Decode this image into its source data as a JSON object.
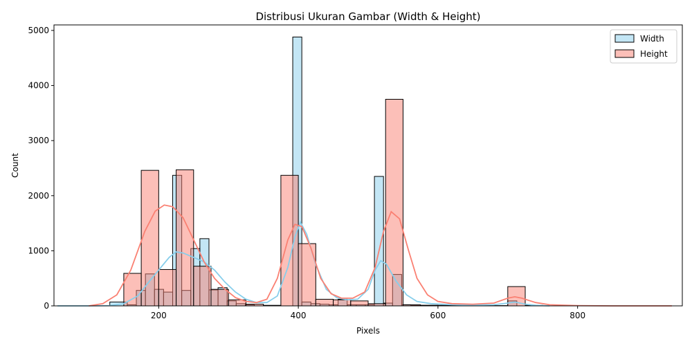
{
  "chart_data": {
    "type": "histogram",
    "title": "Distribusi Ukuran Gambar (Width & Height)",
    "xlabel": "Pixels",
    "ylabel": "Count",
    "xlim": [
      50,
      950
    ],
    "ylim": [
      0,
      5100
    ],
    "xticks": [
      200,
      400,
      600,
      800
    ],
    "yticks": [
      0,
      1000,
      2000,
      3000,
      4000,
      5000
    ],
    "legend_position": "top-right",
    "grid": false,
    "series": [
      {
        "name": "Width",
        "color": "#87ceeb",
        "kde_color": "#87ceeb",
        "bins": [
          {
            "x0": 130,
            "x1": 155,
            "count": 70
          },
          {
            "x0": 155,
            "x1": 168,
            "count": 20
          },
          {
            "x0": 168,
            "x1": 181,
            "count": 280
          },
          {
            "x0": 181,
            "x1": 194,
            "count": 580
          },
          {
            "x0": 194,
            "x1": 207,
            "count": 300
          },
          {
            "x0": 207,
            "x1": 220,
            "count": 250
          },
          {
            "x0": 220,
            "x1": 233,
            "count": 2370
          },
          {
            "x0": 233,
            "x1": 246,
            "count": 280
          },
          {
            "x0": 246,
            "x1": 259,
            "count": 1040
          },
          {
            "x0": 259,
            "x1": 272,
            "count": 1220
          },
          {
            "x0": 272,
            "x1": 285,
            "count": 290
          },
          {
            "x0": 285,
            "x1": 298,
            "count": 330
          },
          {
            "x0": 298,
            "x1": 311,
            "count": 90
          },
          {
            "x0": 311,
            "x1": 324,
            "count": 40
          },
          {
            "x0": 324,
            "x1": 337,
            "count": 20
          },
          {
            "x0": 392,
            "x1": 405,
            "count": 4880
          },
          {
            "x0": 405,
            "x1": 418,
            "count": 70
          },
          {
            "x0": 418,
            "x1": 431,
            "count": 40
          },
          {
            "x0": 431,
            "x1": 444,
            "count": 30
          },
          {
            "x0": 444,
            "x1": 457,
            "count": 20
          },
          {
            "x0": 457,
            "x1": 470,
            "count": 120
          },
          {
            "x0": 470,
            "x1": 483,
            "count": 20
          },
          {
            "x0": 483,
            "x1": 496,
            "count": 20
          },
          {
            "x0": 496,
            "x1": 509,
            "count": 20
          },
          {
            "x0": 509,
            "x1": 522,
            "count": 2350
          },
          {
            "x0": 522,
            "x1": 535,
            "count": 50
          },
          {
            "x0": 535,
            "x1": 548,
            "count": 570
          },
          {
            "x0": 548,
            "x1": 561,
            "count": 20
          },
          {
            "x0": 561,
            "x1": 600,
            "count": 10
          },
          {
            "x0": 700,
            "x1": 713,
            "count": 90
          }
        ],
        "kde": [
          [
            55,
            0
          ],
          [
            100,
            0
          ],
          [
            130,
            5
          ],
          [
            150,
            40
          ],
          [
            170,
            180
          ],
          [
            185,
            420
          ],
          [
            200,
            650
          ],
          [
            215,
            880
          ],
          [
            225,
            980
          ],
          [
            235,
            960
          ],
          [
            250,
            880
          ],
          [
            265,
            800
          ],
          [
            280,
            650
          ],
          [
            295,
            430
          ],
          [
            310,
            250
          ],
          [
            325,
            120
          ],
          [
            340,
            60
          ],
          [
            355,
            60
          ],
          [
            370,
            180
          ],
          [
            385,
            700
          ],
          [
            395,
            1250
          ],
          [
            403,
            1520
          ],
          [
            412,
            1300
          ],
          [
            425,
            750
          ],
          [
            440,
            300
          ],
          [
            455,
            150
          ],
          [
            470,
            110
          ],
          [
            485,
            120
          ],
          [
            500,
            300
          ],
          [
            510,
            650
          ],
          [
            518,
            820
          ],
          [
            526,
            760
          ],
          [
            540,
            450
          ],
          [
            555,
            200
          ],
          [
            570,
            80
          ],
          [
            590,
            40
          ],
          [
            620,
            20
          ],
          [
            650,
            15
          ],
          [
            680,
            20
          ],
          [
            700,
            50
          ],
          [
            710,
            70
          ],
          [
            725,
            30
          ],
          [
            740,
            10
          ],
          [
            760,
            0
          ]
        ]
      },
      {
        "name": "Height",
        "color": "#fa8072",
        "kde_color": "#fa8072",
        "bins": [
          {
            "x0": 150,
            "x1": 175,
            "count": 590
          },
          {
            "x0": 175,
            "x1": 200,
            "count": 2460
          },
          {
            "x0": 200,
            "x1": 225,
            "count": 660
          },
          {
            "x0": 225,
            "x1": 250,
            "count": 2470
          },
          {
            "x0": 250,
            "x1": 275,
            "count": 720
          },
          {
            "x0": 275,
            "x1": 300,
            "count": 300
          },
          {
            "x0": 300,
            "x1": 325,
            "count": 110
          },
          {
            "x0": 325,
            "x1": 350,
            "count": 30
          },
          {
            "x0": 350,
            "x1": 375,
            "count": 10
          },
          {
            "x0": 375,
            "x1": 400,
            "count": 2370
          },
          {
            "x0": 400,
            "x1": 425,
            "count": 1130
          },
          {
            "x0": 425,
            "x1": 450,
            "count": 120
          },
          {
            "x0": 450,
            "x1": 475,
            "count": 110
          },
          {
            "x0": 475,
            "x1": 500,
            "count": 90
          },
          {
            "x0": 500,
            "x1": 525,
            "count": 40
          },
          {
            "x0": 525,
            "x1": 550,
            "count": 3750
          },
          {
            "x0": 550,
            "x1": 575,
            "count": 20
          },
          {
            "x0": 575,
            "x1": 600,
            "count": 10
          },
          {
            "x0": 600,
            "x1": 625,
            "count": 10
          },
          {
            "x0": 625,
            "x1": 650,
            "count": 5
          },
          {
            "x0": 650,
            "x1": 675,
            "count": 5
          },
          {
            "x0": 675,
            "x1": 700,
            "count": 5
          },
          {
            "x0": 700,
            "x1": 725,
            "count": 350
          },
          {
            "x0": 725,
            "x1": 750,
            "count": 10
          }
        ],
        "kde": [
          [
            100,
            0
          ],
          [
            120,
            40
          ],
          [
            140,
            200
          ],
          [
            160,
            650
          ],
          [
            180,
            1350
          ],
          [
            195,
            1720
          ],
          [
            208,
            1830
          ],
          [
            220,
            1800
          ],
          [
            235,
            1600
          ],
          [
            250,
            1200
          ],
          [
            265,
            800
          ],
          [
            280,
            500
          ],
          [
            295,
            300
          ],
          [
            310,
            150
          ],
          [
            325,
            80
          ],
          [
            340,
            60
          ],
          [
            355,
            120
          ],
          [
            370,
            500
          ],
          [
            385,
            1200
          ],
          [
            395,
            1480
          ],
          [
            405,
            1440
          ],
          [
            418,
            1050
          ],
          [
            432,
            500
          ],
          [
            447,
            220
          ],
          [
            462,
            140
          ],
          [
            478,
            140
          ],
          [
            495,
            250
          ],
          [
            510,
            700
          ],
          [
            522,
            1350
          ],
          [
            533,
            1710
          ],
          [
            545,
            1580
          ],
          [
            558,
            1000
          ],
          [
            570,
            500
          ],
          [
            585,
            200
          ],
          [
            600,
            80
          ],
          [
            620,
            40
          ],
          [
            650,
            30
          ],
          [
            680,
            50
          ],
          [
            700,
            140
          ],
          [
            710,
            165
          ],
          [
            720,
            140
          ],
          [
            740,
            60
          ],
          [
            760,
            20
          ],
          [
            800,
            5
          ],
          [
            850,
            0
          ],
          [
            935,
            0
          ]
        ]
      }
    ]
  }
}
